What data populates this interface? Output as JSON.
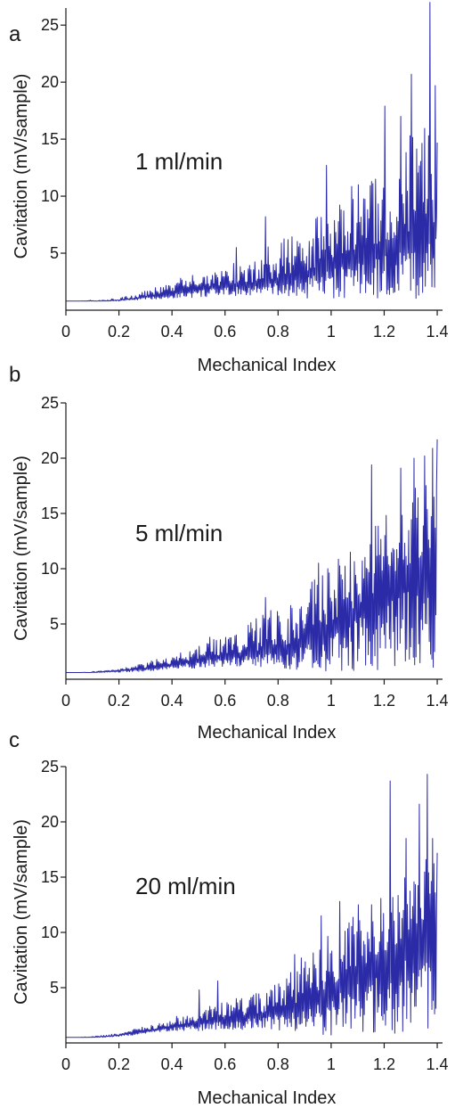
{
  "series_color": "#2b2ba8",
  "chart_data": [
    {
      "type": "line",
      "panel_label": "a",
      "annotation": "1 ml/min",
      "xlabel": "Mechanical Index",
      "ylabel": "Cavitation (mV/sample)",
      "xlim": [
        0,
        1.42
      ],
      "ylim": [
        0,
        26.5
      ],
      "xticks": [
        0,
        0.2,
        0.4,
        0.6,
        0.8,
        1,
        1.2,
        1.4
      ],
      "xtick_labels": [
        "0",
        "0.2",
        "0.4",
        "0.6",
        "0.8",
        "1",
        "1.2",
        "1.4"
      ],
      "yticks": [
        5,
        10,
        15,
        20,
        25
      ],
      "ytick_labels": [
        "5",
        "10",
        "15",
        "20",
        "25"
      ],
      "grid": false,
      "series": [
        {
          "x": [
            0,
            0.05,
            0.1,
            0.15,
            0.2,
            0.25,
            0.3,
            0.35,
            0.4,
            0.45,
            0.5,
            0.55,
            0.6,
            0.65,
            0.7,
            0.75,
            0.8,
            0.85,
            0.9,
            0.95,
            1.0,
            1.05,
            1.1,
            1.15,
            1.2,
            1.25,
            1.3,
            1.35,
            1.38,
            1.4
          ],
          "y_low": [
            0.8,
            0.8,
            0.8,
            0.8,
            0.8,
            0.9,
            0.9,
            1.0,
            1.0,
            1.1,
            1.1,
            1.2,
            1.2,
            1.3,
            1.3,
            1.3,
            1.2,
            1.1,
            1.0,
            0.9,
            0.9,
            0.9,
            0.9,
            0.9,
            0.9,
            0.9,
            0.9,
            0.9,
            0.9,
            0.9
          ],
          "y_mid": [
            0.8,
            0.8,
            0.8,
            0.8,
            0.9,
            1.0,
            1.2,
            1.4,
            1.6,
            1.8,
            2.0,
            2.1,
            2.2,
            2.3,
            2.4,
            2.6,
            2.8,
            3.0,
            3.3,
            3.8,
            4.3,
            4.8,
            5.2,
            5.6,
            6.0,
            6.4,
            6.8,
            7.2,
            7.6,
            7.8
          ],
          "y_high": [
            0.8,
            0.8,
            0.9,
            0.9,
            1.1,
            1.3,
            1.7,
            2.1,
            2.6,
            2.9,
            3.3,
            3.6,
            4.0,
            4.4,
            4.9,
            5.4,
            6.0,
            6.6,
            7.5,
            8.5,
            9.5,
            10.5,
            11.5,
            12.5,
            13.5,
            15.0,
            16.0,
            17.0,
            17.5,
            17.0
          ],
          "spikes": [
            [
              0.43,
              2.8
            ],
            [
              0.64,
              5.5
            ],
            [
              0.75,
              8.2
            ],
            [
              0.98,
              12.7
            ],
            [
              1.1,
              11.0
            ],
            [
              1.2,
              17.9
            ],
            [
              1.26,
              17.0
            ],
            [
              1.3,
              20.7
            ],
            [
              1.37,
              27.0
            ],
            [
              1.39,
              19.7
            ],
            [
              1.4,
              14.7
            ]
          ]
        }
      ]
    },
    {
      "type": "line",
      "panel_label": "b",
      "annotation": "5 ml/min",
      "xlabel": "Mechanical Index",
      "ylabel": "Cavitation (mV/sample)",
      "xlim": [
        0,
        1.42
      ],
      "ylim": [
        0,
        25
      ],
      "xticks": [
        0,
        0.2,
        0.4,
        0.6,
        0.8,
        1,
        1.2,
        1.4
      ],
      "xtick_labels": [
        "0",
        "0.2",
        "0.4",
        "0.6",
        "0.8",
        "1",
        "1.2",
        "1.4"
      ],
      "yticks": [
        5,
        10,
        15,
        20,
        25
      ],
      "ytick_labels": [
        "5",
        "10",
        "15",
        "20",
        "25"
      ],
      "grid": false,
      "series": [
        {
          "x": [
            0,
            0.05,
            0.1,
            0.15,
            0.2,
            0.25,
            0.3,
            0.35,
            0.4,
            0.45,
            0.5,
            0.55,
            0.6,
            0.65,
            0.7,
            0.75,
            0.8,
            0.85,
            0.9,
            0.95,
            1.0,
            1.05,
            1.1,
            1.15,
            1.2,
            1.25,
            1.3,
            1.35,
            1.38,
            1.4
          ],
          "y_low": [
            0.6,
            0.6,
            0.6,
            0.6,
            0.6,
            0.7,
            0.7,
            0.8,
            0.9,
            1.0,
            1.0,
            1.1,
            1.1,
            1.2,
            1.2,
            1.1,
            1.0,
            0.9,
            0.8,
            0.7,
            0.7,
            0.7,
            0.6,
            0.6,
            0.6,
            0.6,
            0.6,
            0.6,
            0.6,
            0.6
          ],
          "y_mid": [
            0.6,
            0.6,
            0.6,
            0.7,
            0.8,
            0.9,
            1.0,
            1.2,
            1.4,
            1.6,
            1.8,
            2.0,
            2.2,
            2.3,
            2.4,
            2.6,
            2.9,
            3.2,
            3.7,
            4.3,
            5.0,
            5.8,
            6.7,
            7.6,
            8.5,
            9.5,
            10.5,
            11.2,
            11.6,
            11.8
          ],
          "y_high": [
            0.6,
            0.6,
            0.7,
            0.8,
            1.0,
            1.2,
            1.5,
            1.9,
            2.3,
            2.7,
            3.2,
            3.6,
            4.0,
            4.5,
            5.2,
            6.0,
            6.8,
            7.6,
            8.5,
            9.5,
            10.5,
            11.5,
            12.5,
            13.5,
            15.0,
            16.5,
            17.5,
            18.0,
            18.0,
            17.5
          ],
          "spikes": [
            [
              0.54,
              3.8
            ],
            [
              0.75,
              7.4
            ],
            [
              0.95,
              10.5
            ],
            [
              1.07,
              11.5
            ],
            [
              1.15,
              19.4
            ],
            [
              1.2,
              13.0
            ],
            [
              1.26,
              19.1
            ],
            [
              1.31,
              20.0
            ],
            [
              1.35,
              20.2
            ],
            [
              1.38,
              20.9
            ],
            [
              1.4,
              21.7
            ]
          ]
        }
      ]
    },
    {
      "type": "line",
      "panel_label": "c",
      "annotation": "20 ml/min",
      "xlabel": "Mechanical Index",
      "ylabel": "Cavitation (mV/sample)",
      "xlim": [
        0,
        1.42
      ],
      "ylim": [
        0,
        25
      ],
      "xticks": [
        0,
        0.2,
        0.4,
        0.6,
        0.8,
        1,
        1.2,
        1.4
      ],
      "xtick_labels": [
        "0",
        "0.2",
        "0.4",
        "0.6",
        "0.8",
        "1",
        "1.2",
        "1.4"
      ],
      "yticks": [
        5,
        10,
        15,
        20,
        25
      ],
      "ytick_labels": [
        "5",
        "10",
        "15",
        "20",
        "25"
      ],
      "grid": false,
      "series": [
        {
          "x": [
            0,
            0.05,
            0.1,
            0.15,
            0.2,
            0.25,
            0.3,
            0.35,
            0.4,
            0.45,
            0.5,
            0.55,
            0.6,
            0.65,
            0.7,
            0.75,
            0.8,
            0.85,
            0.9,
            0.95,
            1.0,
            1.05,
            1.1,
            1.15,
            1.2,
            1.25,
            1.3,
            1.35,
            1.38,
            1.4
          ],
          "y_low": [
            0.5,
            0.5,
            0.5,
            0.5,
            0.6,
            0.7,
            0.8,
            0.9,
            1.0,
            1.1,
            1.1,
            1.2,
            1.2,
            1.2,
            1.2,
            1.2,
            1.1,
            0.9,
            0.7,
            0.6,
            0.6,
            0.6,
            0.6,
            0.6,
            0.6,
            0.6,
            0.6,
            0.6,
            0.6,
            0.6
          ],
          "y_mid": [
            0.5,
            0.5,
            0.5,
            0.6,
            0.7,
            0.9,
            1.1,
            1.3,
            1.5,
            1.7,
            1.9,
            2.1,
            2.2,
            2.4,
            2.5,
            2.7,
            3.0,
            3.4,
            3.9,
            4.5,
            5.2,
            5.9,
            6.6,
            7.4,
            8.2,
            9.0,
            9.8,
            10.4,
            10.8,
            11.0
          ],
          "y_high": [
            0.5,
            0.5,
            0.6,
            0.7,
            0.9,
            1.2,
            1.5,
            1.9,
            2.3,
            2.7,
            3.1,
            3.5,
            3.8,
            4.1,
            4.5,
            5.0,
            5.8,
            6.8,
            8.0,
            9.0,
            10.0,
            11.0,
            12.0,
            12.5,
            13.5,
            14.5,
            15.5,
            16.5,
            17.0,
            16.5
          ],
          "spikes": [
            [
              0.5,
              4.8
            ],
            [
              0.57,
              5.6
            ],
            [
              0.86,
              8.0
            ],
            [
              0.96,
              11.5
            ],
            [
              1.03,
              12.8
            ],
            [
              1.1,
              12.5
            ],
            [
              1.22,
              23.7
            ],
            [
              1.28,
              18.5
            ],
            [
              1.33,
              21.6
            ],
            [
              1.36,
              24.3
            ],
            [
              1.38,
              18.5
            ],
            [
              1.4,
              17.2
            ]
          ]
        }
      ]
    }
  ]
}
